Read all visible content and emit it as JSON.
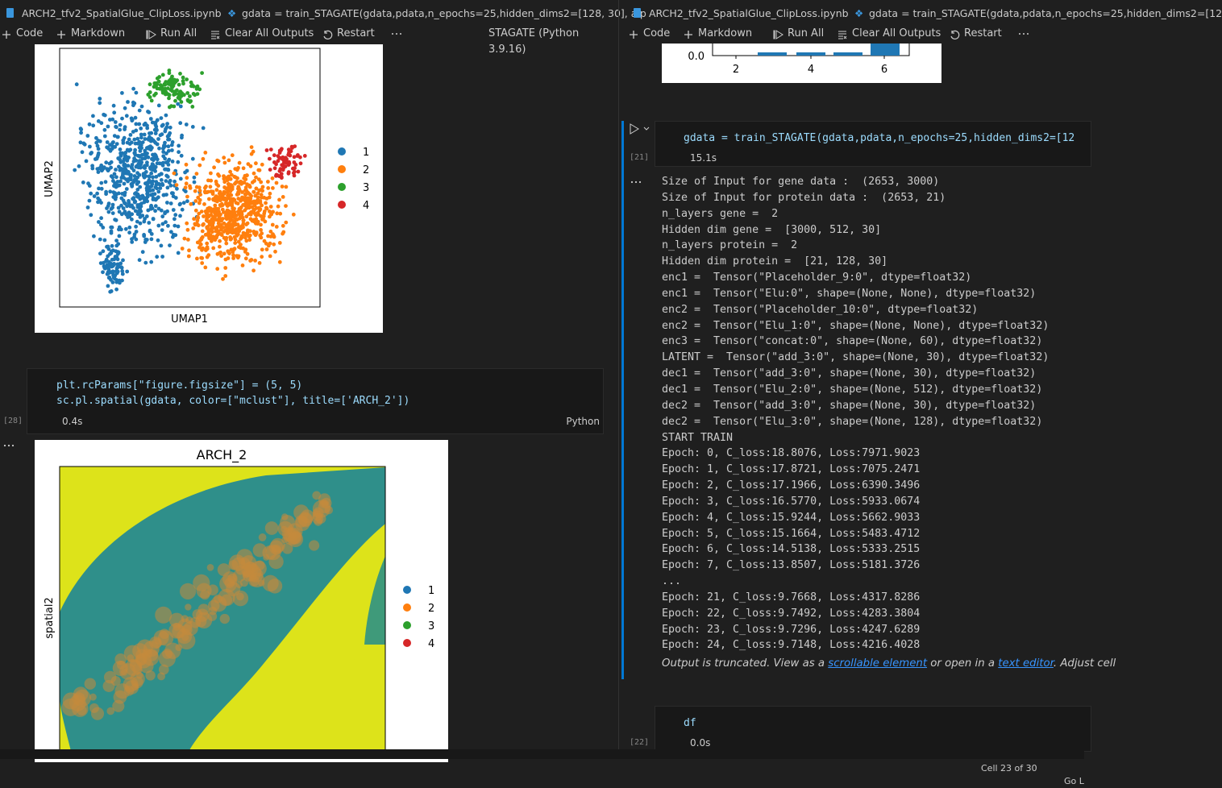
{
  "left_pane": {
    "tab": "ARCH2_tfv2_SpatialGlue_ClipLoss.ipynb",
    "breadcrumb": "gdata = train_STAGATE(gdata,pdata,n_epochs=25,hidden_dims2=[128, 30], alp",
    "toolbar": [
      "Code",
      "Markdown",
      "Run All",
      "Clear All Outputs",
      "Restart"
    ],
    "kernel": "STAGATE (Python 3.9.16)",
    "umap_plot": {
      "xlabel": "UMAP1",
      "ylabel": "UMAP2",
      "legend": [
        "1",
        "2",
        "3",
        "4"
      ]
    },
    "cell": {
      "count": "[28]",
      "lines": [
        "plt.rcParams[\"figure.figsize\"] = (5, 5)",
        "sc.pl.spatial(gdata, color=[\"mclust\"], title=['ARCH_2'])"
      ],
      "time": "0.4s",
      "language": "Python"
    },
    "spatial_plot": {
      "title": "ARCH_2",
      "ylabel": "spatial2",
      "legend": [
        "1",
        "2",
        "3",
        "4"
      ]
    }
  },
  "right_pane": {
    "tab": "ARCH2_tfv2_SpatialGlue_ClipLoss.ipynb",
    "breadcrumb": "gdata = train_STAGATE(gdata,pdata,n_epochs=25,hidden_dims2=[12",
    "toolbar": [
      "Code",
      "Markdown",
      "Run All",
      "Clear All Outputs",
      "Restart"
    ],
    "bar_plot": {
      "yticks": [
        "0.0"
      ],
      "xticks": [
        "2",
        "4",
        "6"
      ]
    },
    "cell_21": {
      "count": "[21]",
      "code": "gdata = train_STAGATE(gdata,pdata,n_epochs=25,hidden_dims2=[12",
      "time": "15.1s",
      "output": [
        "Size of Input for gene data :  (2653, 3000)",
        "Size of Input for protein data :  (2653, 21)",
        "n_layers gene =  2",
        "Hidden dim gene =  [3000, 512, 30]",
        "n_layers protein =  2",
        "Hidden dim protein =  [21, 128, 30]",
        "enc1 =  Tensor(\"Placeholder_9:0\", dtype=float32)",
        "enc1 =  Tensor(\"Elu:0\", shape=(None, None), dtype=float32)",
        "enc2 =  Tensor(\"Placeholder_10:0\", dtype=float32)",
        "enc2 =  Tensor(\"Elu_1:0\", shape=(None, None), dtype=float32)",
        "enc3 =  Tensor(\"concat:0\", shape=(None, 60), dtype=float32)",
        "LATENT =  Tensor(\"add_3:0\", shape=(None, 30), dtype=float32)",
        "dec1 =  Tensor(\"add_3:0\", shape=(None, 30), dtype=float32)",
        "dec1 =  Tensor(\"Elu_2:0\", shape=(None, 512), dtype=float32)",
        "dec2 =  Tensor(\"add_3:0\", shape=(None, 30), dtype=float32)",
        "dec2 =  Tensor(\"Elu_3:0\", shape=(None, 128), dtype=float32)",
        "START TRAIN",
        "Epoch: 0, C_loss:18.8076, Loss:7971.9023",
        "Epoch: 1, C_loss:17.8721, Loss:7075.2471",
        "Epoch: 2, C_loss:17.1966, Loss:6390.3496",
        "Epoch: 3, C_loss:16.5770, Loss:5933.0674",
        "Epoch: 4, C_loss:15.9244, Loss:5662.9033",
        "Epoch: 5, C_loss:15.1664, Loss:5483.4712",
        "Epoch: 6, C_loss:14.5138, Loss:5333.2515",
        "Epoch: 7, C_loss:13.8507, Loss:5181.3726",
        "...",
        "Epoch: 21, C_loss:9.7668, Loss:4317.8286",
        "Epoch: 22, C_loss:9.7492, Loss:4283.3804",
        "Epoch: 23, C_loss:9.7296, Loss:4247.6289",
        "Epoch: 24, C_loss:9.7148, Loss:4216.4028"
      ],
      "truncation": {
        "before": "Output is truncated. View as a ",
        "link1": "scrollable element",
        "middle": " or open in a ",
        "link2": "text editor",
        "after": ". Adjust cell"
      }
    },
    "cell_22": {
      "count": "[22]",
      "code": "df",
      "time": "0.0s"
    }
  },
  "status_bar": {
    "cell": "Cell 23 of 30",
    "go": "Go L"
  }
}
